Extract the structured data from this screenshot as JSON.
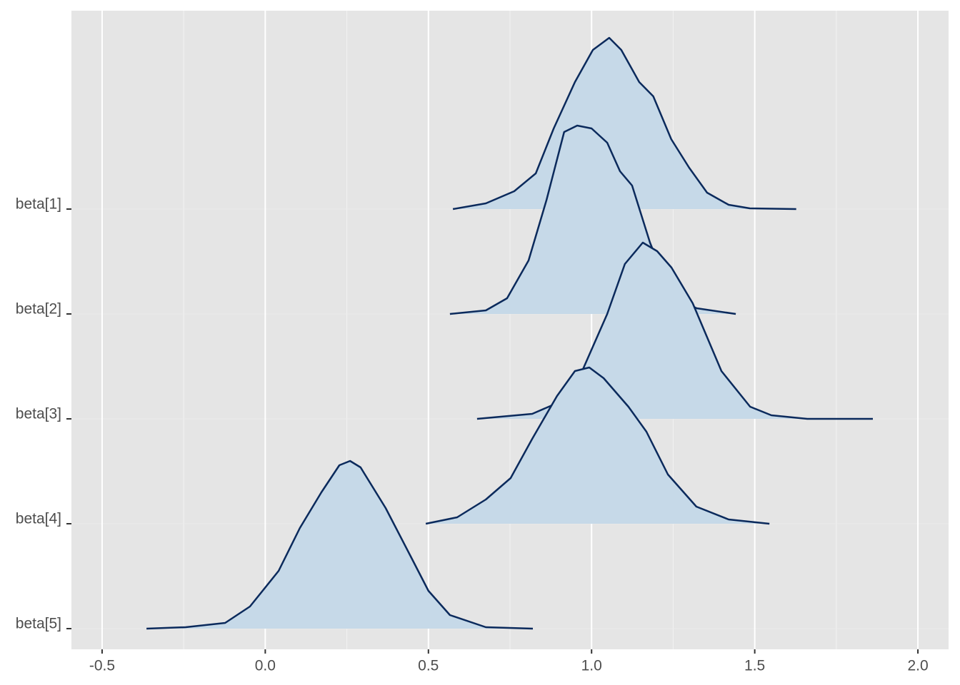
{
  "chart_data": {
    "type": "ridgeline",
    "xlim": [
      -0.594,
      2.094
    ],
    "xticks": [
      -0.5,
      {
        "value": 0,
        "label": "0.0"
      },
      0.5,
      {
        "value": 1,
        "label": "1.0"
      },
      1.5,
      {
        "value": 2,
        "label": "2.0"
      }
    ],
    "minor_xticks": [
      -0.25,
      0.25,
      0.75,
      1.25,
      1.75
    ],
    "grid": true,
    "fill_color": "#c6d9e8",
    "line_color": "#0b2a5c",
    "series": [
      {
        "name": "beta[1]",
        "x": [
          0.575,
          0.676,
          0.763,
          0.829,
          0.884,
          0.949,
          1.004,
          1.054,
          1.091,
          1.146,
          1.189,
          1.244,
          1.299,
          1.354,
          1.42,
          1.485,
          1.627
        ],
        "values": [
          0,
          0.08,
          0.25,
          0.5,
          1.13,
          1.78,
          2.23,
          2.4,
          2.23,
          1.78,
          1.58,
          0.98,
          0.58,
          0.23,
          0.06,
          0.01,
          0
        ]
      },
      {
        "name": "beta[2]",
        "x": [
          0.566,
          0.676,
          0.741,
          0.807,
          0.862,
          0.916,
          0.956,
          1.0,
          1.048,
          1.087,
          1.124,
          1.179,
          1.245,
          1.322,
          1.442
        ],
        "values": [
          0,
          0.05,
          0.22,
          0.75,
          1.6,
          2.55,
          2.64,
          2.6,
          2.4,
          2.0,
          1.8,
          1.0,
          0.25,
          0.08,
          0
        ]
      },
      {
        "name": "beta[3]",
        "x": [
          0.649,
          0.818,
          0.894,
          0.971,
          1.048,
          1.102,
          1.157,
          1.201,
          1.245,
          1.31,
          1.398,
          1.486,
          1.551,
          1.661,
          1.862
        ],
        "values": [
          0,
          0.07,
          0.22,
          0.67,
          1.47,
          2.17,
          2.47,
          2.35,
          2.12,
          1.62,
          0.67,
          0.17,
          0.05,
          0,
          0
        ]
      },
      {
        "name": "beta[4]",
        "x": [
          0.492,
          0.588,
          0.676,
          0.752,
          0.818,
          0.894,
          0.949,
          0.993,
          1.037,
          1.113,
          1.168,
          1.234,
          1.321,
          1.42,
          1.545
        ],
        "values": [
          0,
          0.09,
          0.34,
          0.64,
          1.19,
          1.79,
          2.14,
          2.19,
          2.04,
          1.64,
          1.29,
          0.69,
          0.24,
          0.06,
          0
        ]
      },
      {
        "name": "beta[5]",
        "x": [
          -0.364,
          -0.244,
          -0.123,
          -0.047,
          0.041,
          0.106,
          0.172,
          0.227,
          0.26,
          0.292,
          0.369,
          0.446,
          0.5,
          0.566,
          0.676,
          0.82
        ],
        "values": [
          0,
          0.02,
          0.08,
          0.31,
          0.81,
          1.41,
          1.91,
          2.29,
          2.35,
          2.26,
          1.69,
          1.01,
          0.53,
          0.19,
          0.02,
          0
        ]
      }
    ]
  }
}
